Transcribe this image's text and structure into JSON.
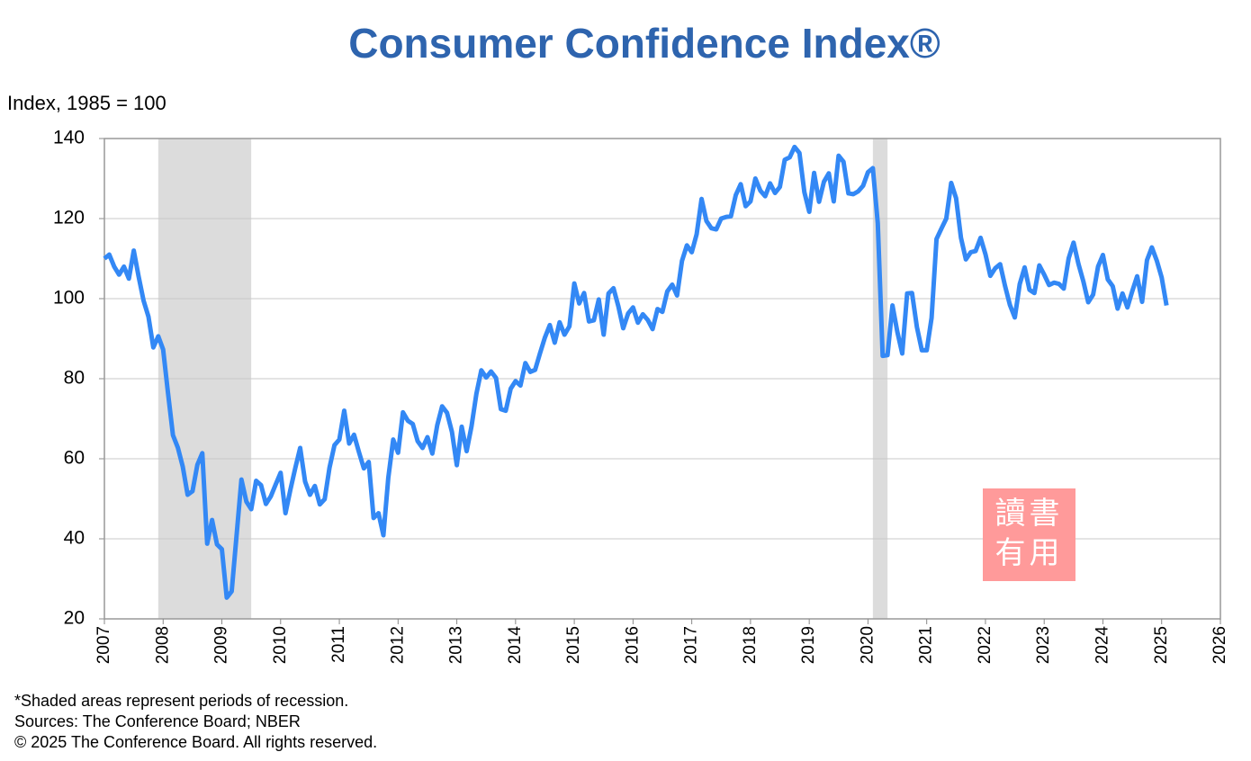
{
  "chart_data": {
    "type": "line",
    "title": "Consumer Confidence Index®",
    "y_label": "Index, 1985 = 100",
    "notes": [
      "*Shaded areas represent periods of recession.",
      "Sources: The Conference Board;  NBER",
      "© 2025 The Conference Board. All rights reserved."
    ],
    "watermark": [
      "讀書",
      "有用"
    ],
    "xlim": [
      2007,
      2026
    ],
    "xticks": [
      2007,
      2008,
      2009,
      2010,
      2011,
      2012,
      2013,
      2014,
      2015,
      2016,
      2017,
      2018,
      2019,
      2020,
      2021,
      2022,
      2023,
      2024,
      2025,
      2026
    ],
    "ylim": [
      20,
      140
    ],
    "yticks": [
      20,
      40,
      60,
      80,
      100,
      120,
      140
    ],
    "grid": true,
    "recessions": [
      [
        2007.917,
        2009.5
      ],
      [
        2020.083,
        2020.333
      ]
    ],
    "recession_color": "#dcdcdc",
    "x": [
      2007,
      2007.083,
      2007.167,
      2007.25,
      2007.333,
      2007.417,
      2007.5,
      2007.583,
      2007.667,
      2007.75,
      2007.833,
      2007.917,
      2008,
      2008.083,
      2008.167,
      2008.25,
      2008.333,
      2008.417,
      2008.5,
      2008.583,
      2008.667,
      2008.75,
      2008.833,
      2008.917,
      2009,
      2009.083,
      2009.167,
      2009.25,
      2009.333,
      2009.417,
      2009.5,
      2009.583,
      2009.667,
      2009.75,
      2009.833,
      2009.917,
      2010,
      2010.083,
      2010.167,
      2010.25,
      2010.333,
      2010.417,
      2010.5,
      2010.583,
      2010.667,
      2010.75,
      2010.833,
      2010.917,
      2011,
      2011.083,
      2011.167,
      2011.25,
      2011.333,
      2011.417,
      2011.5,
      2011.583,
      2011.667,
      2011.75,
      2011.833,
      2011.917,
      2012,
      2012.083,
      2012.167,
      2012.25,
      2012.333,
      2012.417,
      2012.5,
      2012.583,
      2012.667,
      2012.75,
      2012.833,
      2012.917,
      2013,
      2013.083,
      2013.167,
      2013.25,
      2013.333,
      2013.417,
      2013.5,
      2013.583,
      2013.667,
      2013.75,
      2013.833,
      2013.917,
      2014,
      2014.083,
      2014.167,
      2014.25,
      2014.333,
      2014.417,
      2014.5,
      2014.583,
      2014.667,
      2014.75,
      2014.833,
      2014.917,
      2015,
      2015.083,
      2015.167,
      2015.25,
      2015.333,
      2015.417,
      2015.5,
      2015.583,
      2015.667,
      2015.75,
      2015.833,
      2015.917,
      2016,
      2016.083,
      2016.167,
      2016.25,
      2016.333,
      2016.417,
      2016.5,
      2016.583,
      2016.667,
      2016.75,
      2016.833,
      2016.917,
      2017,
      2017.083,
      2017.167,
      2017.25,
      2017.333,
      2017.417,
      2017.5,
      2017.583,
      2017.667,
      2017.75,
      2017.833,
      2017.917,
      2018,
      2018.083,
      2018.167,
      2018.25,
      2018.333,
      2018.417,
      2018.5,
      2018.583,
      2018.667,
      2018.75,
      2018.833,
      2018.917,
      2019,
      2019.083,
      2019.167,
      2019.25,
      2019.333,
      2019.417,
      2019.5,
      2019.583,
      2019.667,
      2019.75,
      2019.833,
      2019.917,
      2020,
      2020.083,
      2020.167,
      2020.25,
      2020.333,
      2020.417,
      2020.5,
      2020.583,
      2020.667,
      2020.75,
      2020.833,
      2020.917,
      2021,
      2021.083,
      2021.167,
      2021.25,
      2021.333,
      2021.417,
      2021.5,
      2021.583,
      2021.667,
      2021.75,
      2021.833,
      2021.917,
      2022,
      2022.083,
      2022.167,
      2022.25,
      2022.333,
      2022.417,
      2022.5,
      2022.583,
      2022.667,
      2022.75,
      2022.833,
      2022.917,
      2023,
      2023.083,
      2023.167,
      2023.25,
      2023.333,
      2023.417,
      2023.5,
      2023.583,
      2023.667,
      2023.75,
      2023.833,
      2023.917,
      2024,
      2024.083,
      2024.167,
      2024.25,
      2024.333,
      2024.417,
      2024.5,
      2024.583,
      2024.667,
      2024.75,
      2024.833,
      2024.917,
      2025,
      2025.083
    ],
    "series": [
      {
        "color": "#3388f5",
        "values": [
          110,
          111,
          108,
          106,
          108,
          105,
          112,
          105.5,
          99.5,
          95.5,
          87.8,
          90.6,
          87.3,
          76.4,
          65.9,
          62.8,
          58.1,
          51.0,
          51.9,
          58.5,
          61.4,
          38.8,
          44.7,
          38.6,
          37.4,
          25.3,
          26.9,
          40.8,
          54.8,
          49.3,
          47.4,
          54.5,
          53.4,
          48.7,
          50.6,
          53.6,
          56.5,
          46.4,
          52.3,
          57.7,
          62.7,
          54.3,
          51.0,
          53.2,
          48.6,
          49.9,
          57.8,
          63.4,
          64.8,
          72.0,
          63.8,
          66.0,
          61.7,
          57.6,
          59.2,
          45.2,
          46.4,
          40.9,
          55.2,
          64.8,
          61.5,
          71.6,
          69.5,
          68.7,
          64.4,
          62.7,
          65.4,
          61.3,
          68.4,
          73.1,
          71.5,
          66.7,
          58.4,
          68.0,
          61.9,
          68.1,
          76.2,
          82.1,
          80.3,
          81.8,
          80.2,
          72.4,
          72.0,
          77.5,
          79.4,
          78.3,
          83.9,
          81.7,
          82.2,
          86.4,
          90.3,
          93.4,
          89.0,
          94.1,
          91.0,
          93.1,
          103.8,
          98.8,
          101.4,
          94.3,
          94.6,
          99.8,
          91.0,
          101.3,
          102.6,
          98.1,
          92.6,
          96.3,
          97.8,
          94.0,
          96.1,
          94.7,
          92.4,
          97.4,
          96.7,
          101.8,
          103.5,
          100.8,
          109.4,
          113.3,
          111.6,
          116.1,
          124.9,
          119.4,
          117.6,
          117.3,
          120.0,
          120.4,
          120.6,
          125.9,
          128.6,
          123.1,
          124.3,
          130.0,
          127.0,
          125.6,
          128.8,
          126.4,
          127.9,
          134.7,
          135.3,
          137.9,
          136.4,
          126.6,
          121.7,
          131.4,
          124.2,
          129.2,
          131.3,
          124.3,
          135.7,
          134.2,
          126.3,
          126.1,
          126.8,
          128.2,
          131.6,
          132.6,
          118.8,
          85.7,
          85.9,
          98.3,
          91.7,
          86.3,
          101.3,
          101.4,
          92.9,
          87.1,
          87.1,
          95.2,
          114.9,
          117.5,
          120.0,
          128.9,
          125.1,
          115.2,
          109.8,
          111.6,
          111.9,
          115.2,
          111.1,
          105.7,
          107.6,
          108.6,
          103.2,
          98.4,
          95.3,
          103.6,
          107.8,
          102.2,
          101.4,
          108.3,
          106.0,
          103.4,
          104.0,
          103.7,
          102.5,
          110.1,
          114.0,
          108.7,
          104.3,
          99.1,
          101.0,
          108.0,
          110.9,
          104.8,
          103.1,
          97.5,
          101.3,
          97.8,
          101.9,
          105.6,
          99.2,
          109.6,
          112.8,
          109.5,
          105.3,
          98.3
        ]
      }
    ]
  }
}
